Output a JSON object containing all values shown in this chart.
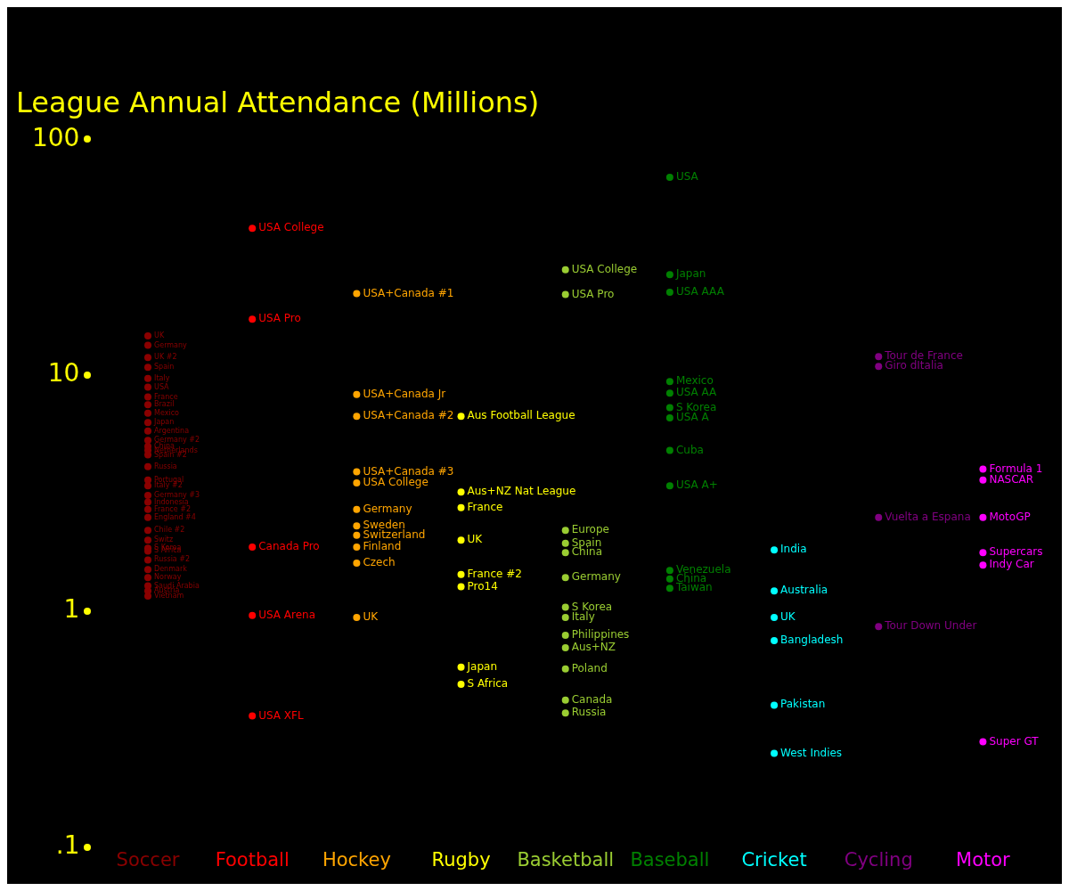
{
  "chart_data": {
    "type": "scatter",
    "title": "League Annual Attendance (Millions)",
    "categories": [
      "Soccer",
      "Football",
      "Hockey",
      "Rugby",
      "Basketball",
      "Baseball",
      "Cricket",
      "Cycling",
      "Motor"
    ],
    "log": "y",
    "ylim": [
      0.1,
      100
    ],
    "yticks": [
      100,
      10,
      1,
      {
        "value": 0.1,
        "label": ".1"
      }
    ],
    "marker": "circle",
    "series": [
      {
        "color": "#8b0000",
        "x": [
          "Soccer",
          "Soccer",
          "Soccer",
          "Soccer",
          "Soccer",
          "Soccer",
          "Soccer",
          "Soccer",
          "Soccer",
          "Soccer",
          "Soccer",
          "Soccer",
          "Soccer",
          "Soccer",
          "Soccer",
          "Soccer",
          "Soccer",
          "Soccer",
          "Soccer",
          "Soccer",
          "Soccer",
          "Soccer",
          "Soccer",
          "Soccer",
          "Soccer",
          "Soccer",
          "Soccer",
          "Soccer",
          "Soccer",
          "Soccer",
          "Soccer",
          "Soccer"
        ],
        "values": [
          14.7,
          13.4,
          11.9,
          10.8,
          9.7,
          8.9,
          8.1,
          7.5,
          6.9,
          6.3,
          5.8,
          5.3,
          5.0,
          4.8,
          4.6,
          4.1,
          3.6,
          3.4,
          3.1,
          2.9,
          2.7,
          2.5,
          2.2,
          2.0,
          1.85,
          1.8,
          1.65,
          1.5,
          1.39,
          1.28,
          1.22,
          1.16
        ]
      },
      {
        "color": "#ff0000",
        "x": [
          "Football",
          "Football",
          "Football",
          "Football",
          "Football"
        ],
        "values": [
          42,
          17.3,
          1.87,
          0.96,
          0.36
        ]
      },
      {
        "color": "#ffa500",
        "x": [
          "Hockey",
          "Hockey",
          "Hockey",
          "Hockey",
          "Hockey",
          "Hockey",
          "Hockey",
          "Hockey",
          "Hockey",
          "Hockey",
          "Hockey"
        ],
        "values": [
          22.2,
          8.3,
          6.7,
          3.9,
          3.5,
          2.7,
          2.3,
          2.1,
          1.87,
          1.6,
          0.94
        ]
      },
      {
        "color": "#ffff00",
        "x": [
          "Rugby",
          "Rugby",
          "Rugby",
          "Rugby",
          "Rugby",
          "Rugby",
          "Rugby",
          "Rugby"
        ],
        "values": [
          6.7,
          3.2,
          2.75,
          2.0,
          1.43,
          1.27,
          0.58,
          0.49
        ]
      },
      {
        "color": "#9acd32",
        "x": [
          "Basketball",
          "Basketball",
          "Basketball",
          "Basketball",
          "Basketball",
          "Basketball",
          "Basketball",
          "Basketball",
          "Basketball",
          "Basketball",
          "Basketball",
          "Basketball",
          "Basketball"
        ],
        "values": [
          28,
          22,
          2.2,
          1.94,
          1.77,
          1.39,
          1.04,
          0.94,
          0.79,
          0.7,
          0.57,
          0.42,
          0.37
        ]
      },
      {
        "color": "#008000",
        "x": [
          "Baseball",
          "Baseball",
          "Baseball",
          "Baseball",
          "Baseball",
          "Baseball",
          "Baseball",
          "Baseball",
          "Baseball",
          "Baseball",
          "Baseball",
          "Baseball"
        ],
        "values": [
          69,
          26.7,
          22.5,
          9.4,
          8.4,
          7.3,
          6.6,
          4.8,
          3.4,
          1.49,
          1.37,
          1.25
        ]
      },
      {
        "color": "#00ffff",
        "x": [
          "Cricket",
          "Cricket",
          "Cricket",
          "Cricket",
          "Cricket",
          "Cricket"
        ],
        "values": [
          1.82,
          1.22,
          0.94,
          0.75,
          0.4,
          0.25
        ]
      },
      {
        "color": "#800080",
        "x": [
          "Cycling",
          "Cycling",
          "Cycling",
          "Cycling"
        ],
        "values": [
          12,
          10.9,
          2.5,
          0.86
        ]
      },
      {
        "color": "#ff00ff",
        "x": [
          "Motor",
          "Motor",
          "Motor",
          "Motor",
          "Motor",
          "Motor"
        ],
        "values": [
          4.0,
          3.6,
          2.5,
          1.77,
          1.57,
          0.28
        ]
      }
    ],
    "annotations": [
      {
        "text": "UK",
        "x": "Soccer",
        "y": 14.7
      },
      {
        "text": "Germany",
        "x": "Soccer",
        "y": 13.4
      },
      {
        "text": "UK #2",
        "x": "Soccer",
        "y": 11.9
      },
      {
        "text": "Spain",
        "x": "Soccer",
        "y": 10.8
      },
      {
        "text": "Italy",
        "x": "Soccer",
        "y": 9.7
      },
      {
        "text": "USA",
        "x": "Soccer",
        "y": 8.9
      },
      {
        "text": "France",
        "x": "Soccer",
        "y": 8.1
      },
      {
        "text": "Brazil",
        "x": "Soccer",
        "y": 7.5
      },
      {
        "text": "Mexico",
        "x": "Soccer",
        "y": 6.9
      },
      {
        "text": "Japan",
        "x": "Soccer",
        "y": 6.3
      },
      {
        "text": "Argentina",
        "x": "Soccer",
        "y": 5.8
      },
      {
        "text": "Germany #2",
        "x": "Soccer",
        "y": 5.3
      },
      {
        "text": "China",
        "x": "Soccer",
        "y": 5.0
      },
      {
        "text": "Netherlands",
        "x": "Soccer",
        "y": 4.8
      },
      {
        "text": "Spain #2",
        "x": "Soccer",
        "y": 4.6
      },
      {
        "text": "Russia",
        "x": "Soccer",
        "y": 4.1
      },
      {
        "text": "Portugal",
        "x": "Soccer",
        "y": 3.6
      },
      {
        "text": "Italy #2",
        "x": "Soccer",
        "y": 3.4
      },
      {
        "text": "Germany #3",
        "x": "Soccer",
        "y": 3.1
      },
      {
        "text": "Indonesia",
        "x": "Soccer",
        "y": 2.9
      },
      {
        "text": "France #2",
        "x": "Soccer",
        "y": 2.7
      },
      {
        "text": "England #4",
        "x": "Soccer",
        "y": 2.5
      },
      {
        "text": "Chile #2",
        "x": "Soccer",
        "y": 2.2
      },
      {
        "text": "Switz",
        "x": "Soccer",
        "y": 2.0
      },
      {
        "text": "S Korea",
        "x": "Soccer",
        "y": 1.85
      },
      {
        "text": "S Africa",
        "x": "Soccer",
        "y": 1.8
      },
      {
        "text": "Russia #2",
        "x": "Soccer",
        "y": 1.65
      },
      {
        "text": "Denmark",
        "x": "Soccer",
        "y": 1.5
      },
      {
        "text": "Norway",
        "x": "Soccer",
        "y": 1.39
      },
      {
        "text": "Saudi Arabia",
        "x": "Soccer",
        "y": 1.28
      },
      {
        "text": "Austria",
        "x": "Soccer",
        "y": 1.22
      },
      {
        "text": "Vietnam",
        "x": "Soccer",
        "y": 1.16
      },
      {
        "text": "USA College",
        "x": "Football",
        "y": 42
      },
      {
        "text": "USA Pro",
        "x": "Football",
        "y": 17.3
      },
      {
        "text": "Canada Pro",
        "x": "Football",
        "y": 1.87
      },
      {
        "text": "USA Arena",
        "x": "Football",
        "y": 0.96
      },
      {
        "text": "USA XFL",
        "x": "Football",
        "y": 0.36
      },
      {
        "text": "USA+Canada #1",
        "x": "Hockey",
        "y": 22.2
      },
      {
        "text": "USA+Canada Jr",
        "x": "Hockey",
        "y": 8.3
      },
      {
        "text": "USA+Canada #2",
        "x": "Hockey",
        "y": 6.7
      },
      {
        "text": "USA+Canada #3",
        "x": "Hockey",
        "y": 3.9
      },
      {
        "text": "USA College",
        "x": "Hockey",
        "y": 3.5
      },
      {
        "text": "Germany",
        "x": "Hockey",
        "y": 2.7
      },
      {
        "text": "Sweden",
        "x": "Hockey",
        "y": 2.3
      },
      {
        "text": "Switzerland",
        "x": "Hockey",
        "y": 2.1
      },
      {
        "text": "Finland",
        "x": "Hockey",
        "y": 1.87
      },
      {
        "text": "Czech",
        "x": "Hockey",
        "y": 1.6
      },
      {
        "text": "UK",
        "x": "Hockey",
        "y": 0.94
      },
      {
        "text": "Aus Football League",
        "x": "Rugby",
        "y": 6.7
      },
      {
        "text": "Aus+NZ Nat League",
        "x": "Rugby",
        "y": 3.2
      },
      {
        "text": "France",
        "x": "Rugby",
        "y": 2.75
      },
      {
        "text": "UK",
        "x": "Rugby",
        "y": 2.0
      },
      {
        "text": "France #2",
        "x": "Rugby",
        "y": 1.43
      },
      {
        "text": "Pro14",
        "x": "Rugby",
        "y": 1.27
      },
      {
        "text": "Japan",
        "x": "Rugby",
        "y": 0.58
      },
      {
        "text": "S Africa",
        "x": "Rugby",
        "y": 0.49
      },
      {
        "text": "USA College",
        "x": "Basketball",
        "y": 28
      },
      {
        "text": "USA Pro",
        "x": "Basketball",
        "y": 22
      },
      {
        "text": "Europe",
        "x": "Basketball",
        "y": 2.2
      },
      {
        "text": "Spain",
        "x": "Basketball",
        "y": 1.94
      },
      {
        "text": "China",
        "x": "Basketball",
        "y": 1.77
      },
      {
        "text": "Germany",
        "x": "Basketball",
        "y": 1.39
      },
      {
        "text": "S Korea",
        "x": "Basketball",
        "y": 1.04
      },
      {
        "text": "Italy",
        "x": "Basketball",
        "y": 0.94
      },
      {
        "text": "Philippines",
        "x": "Basketball",
        "y": 0.79
      },
      {
        "text": "Aus+NZ",
        "x": "Basketball",
        "y": 0.7
      },
      {
        "text": "Poland",
        "x": "Basketball",
        "y": 0.57
      },
      {
        "text": "Canada",
        "x": "Basketball",
        "y": 0.42
      },
      {
        "text": "Russia",
        "x": "Basketball",
        "y": 0.37
      },
      {
        "text": "USA",
        "x": "Baseball",
        "y": 69
      },
      {
        "text": "Japan",
        "x": "Baseball",
        "y": 26.7
      },
      {
        "text": "USA AAA",
        "x": "Baseball",
        "y": 22.5
      },
      {
        "text": "Mexico",
        "x": "Baseball",
        "y": 9.4
      },
      {
        "text": "USA AA",
        "x": "Baseball",
        "y": 8.4
      },
      {
        "text": "S Korea",
        "x": "Baseball",
        "y": 7.3
      },
      {
        "text": "USA A",
        "x": "Baseball",
        "y": 6.6
      },
      {
        "text": "Cuba",
        "x": "Baseball",
        "y": 4.8
      },
      {
        "text": "USA A+",
        "x": "Baseball",
        "y": 3.4
      },
      {
        "text": "Venezuela",
        "x": "Baseball",
        "y": 1.49
      },
      {
        "text": "China",
        "x": "Baseball",
        "y": 1.37
      },
      {
        "text": "Taiwan",
        "x": "Baseball",
        "y": 1.25
      },
      {
        "text": "India",
        "x": "Cricket",
        "y": 1.82
      },
      {
        "text": "Australia",
        "x": "Cricket",
        "y": 1.22
      },
      {
        "text": "UK",
        "x": "Cricket",
        "y": 0.94
      },
      {
        "text": "Bangladesh",
        "x": "Cricket",
        "y": 0.75
      },
      {
        "text": "Pakistan",
        "x": "Cricket",
        "y": 0.4
      },
      {
        "text": "West Indies",
        "x": "Cricket",
        "y": 0.25
      },
      {
        "text": "Tour de France",
        "x": "Cycling",
        "y": 12
      },
      {
        "text": "Giro dItalia",
        "x": "Cycling",
        "y": 10.9
      },
      {
        "text": "Vuelta a Espana",
        "x": "Cycling",
        "y": 2.5
      },
      {
        "text": "Tour Down Under",
        "x": "Cycling",
        "y": 0.86
      },
      {
        "text": "Formula 1",
        "x": "Motor",
        "y": 4.0
      },
      {
        "text": "NASCAR",
        "x": "Motor",
        "y": 3.6
      },
      {
        "text": "MotoGP",
        "x": "Motor",
        "y": 2.5
      },
      {
        "text": "Supercars",
        "x": "Motor",
        "y": 1.77
      },
      {
        "text": "Indy Car",
        "x": "Motor",
        "y": 1.57
      },
      {
        "text": "Super GT",
        "x": "Motor",
        "y": 0.28
      }
    ]
  }
}
